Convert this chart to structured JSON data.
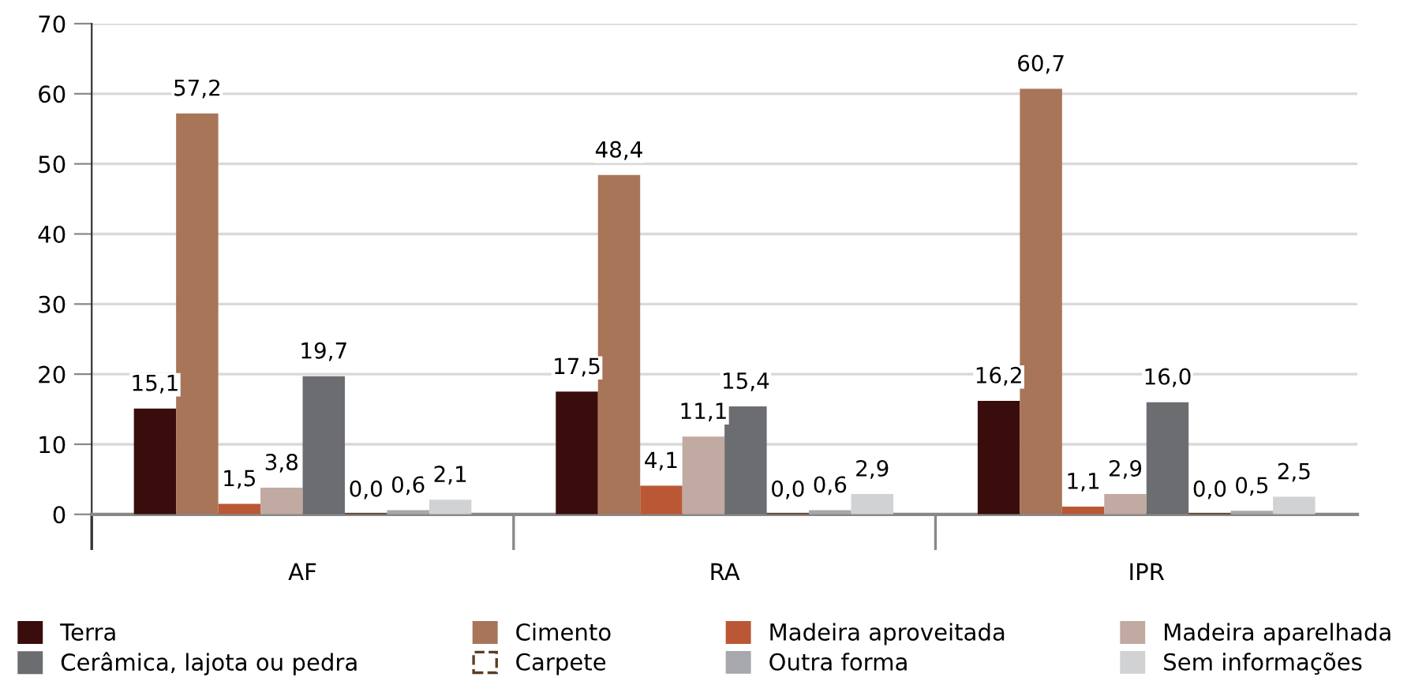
{
  "chart_data": {
    "type": "bar",
    "categories": [
      "AF",
      "RA",
      "IPR"
    ],
    "series": [
      {
        "name": "Terra",
        "color": "#380d0b",
        "values": [
          15.1,
          17.5,
          16.2
        ],
        "value_labels": [
          "15,1",
          "17,5",
          "16,2"
        ]
      },
      {
        "name": "Cimento",
        "color": "#a87559",
        "values": [
          57.2,
          48.4,
          60.7
        ],
        "value_labels": [
          "57,2",
          "48,4",
          "60,7"
        ]
      },
      {
        "name": "Madeira aproveitada",
        "color": "#ba5836",
        "values": [
          1.5,
          4.1,
          1.1
        ],
        "value_labels": [
          "1,5",
          "4,1",
          "1,1"
        ]
      },
      {
        "name": "Madeira aparelhada",
        "color": "#c0aaa1",
        "values": [
          3.8,
          11.1,
          2.9
        ],
        "value_labels": [
          "3,8",
          "11,1",
          "2,9"
        ]
      },
      {
        "name": "Cerâmica, lajota ou pedra",
        "color": "#6c6d71",
        "values": [
          19.7,
          15.4,
          16.0
        ],
        "value_labels": [
          "19,7",
          "15,4",
          "16,0"
        ]
      },
      {
        "name": "Carpete",
        "color": "#5c3d24",
        "line_style": "dashed",
        "values": [
          0.0,
          0.0,
          0.0
        ],
        "value_labels": [
          "0,0",
          "0,0",
          "0,0"
        ]
      },
      {
        "name": "Outra forma",
        "color": "#a7a8ac",
        "values": [
          0.6,
          0.6,
          0.5
        ],
        "value_labels": [
          "0,6",
          "0,6",
          "0,5"
        ]
      },
      {
        "name": "Sem informações",
        "color": "#d1d2d4",
        "values": [
          2.1,
          2.9,
          2.5
        ],
        "value_labels": [
          "2,1",
          "2,9",
          "2,5"
        ]
      }
    ],
    "ylim": [
      0,
      70
    ],
    "yticks": [
      0,
      10,
      20,
      30,
      40,
      50,
      60,
      70
    ],
    "grid": "y",
    "legend": "bottom"
  }
}
